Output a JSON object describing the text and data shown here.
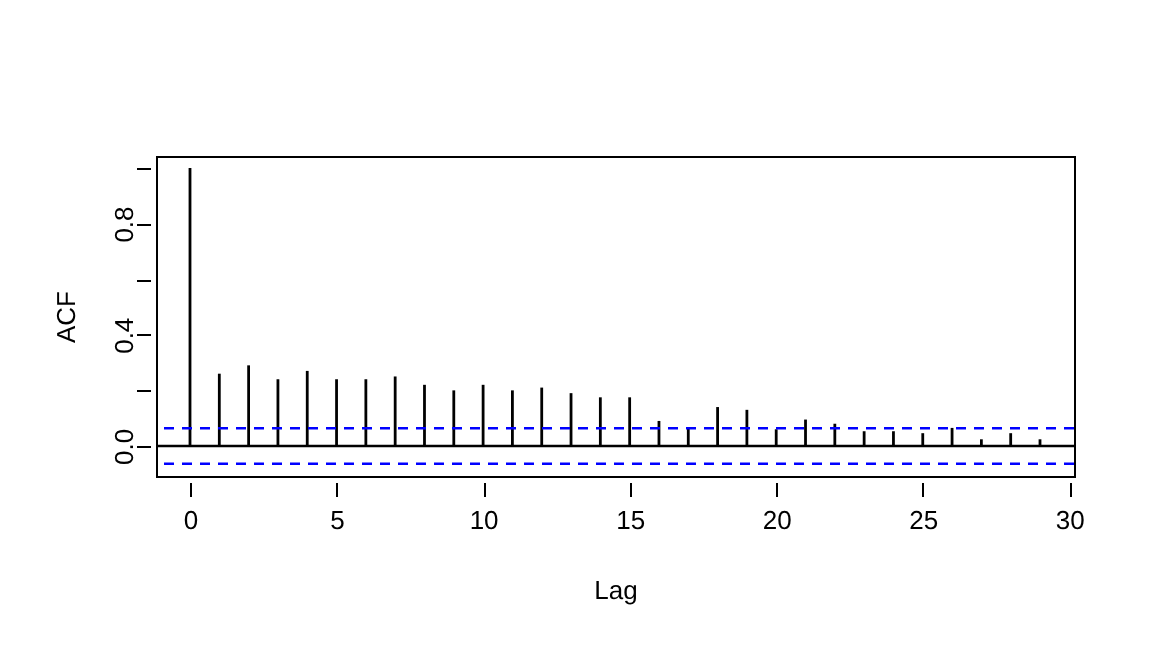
{
  "chart_data": {
    "type": "bar",
    "xlabel": "Lag",
    "ylabel": "ACF",
    "x": [
      0,
      1,
      2,
      3,
      4,
      5,
      6,
      7,
      8,
      9,
      10,
      11,
      12,
      13,
      14,
      15,
      16,
      17,
      18,
      19,
      20,
      21,
      22,
      23,
      24,
      25,
      26,
      27,
      28,
      29
    ],
    "series": [
      {
        "color": "#000000",
        "values": [
          1.0,
          0.26,
          0.29,
          0.24,
          0.27,
          0.24,
          0.24,
          0.25,
          0.22,
          0.2,
          0.22,
          0.2,
          0.21,
          0.19,
          0.175,
          0.175,
          0.09,
          0.065,
          0.14,
          0.13,
          0.06,
          0.095,
          0.08,
          0.053,
          0.053,
          0.046,
          0.065,
          0.024,
          0.046,
          0.024
        ]
      }
    ],
    "xlim": [
      -1.16,
      30.16
    ],
    "ylim": [
      -0.108,
      1.043
    ],
    "xticks": [
      0,
      5,
      10,
      15,
      20,
      25,
      30
    ],
    "yticks": [
      {
        "value": 0,
        "label": "0.0"
      },
      {
        "value": 0.2,
        "label": null
      },
      {
        "value": 0.4,
        "label": "0.4"
      },
      {
        "value": 0.6,
        "label": null
      },
      {
        "value": 0.8,
        "label": "0.8"
      },
      {
        "value": 1.0,
        "label": null
      }
    ],
    "ref_lines": [
      {
        "axis": "y",
        "value": 0,
        "color": "#000000"
      },
      {
        "axis": "y",
        "value": 0.064,
        "color": "#0000ff",
        "line_style": "dashed"
      },
      {
        "axis": "y",
        "value": -0.064,
        "color": "#0000ff",
        "line_style": "dashed"
      }
    ],
    "grid": false
  }
}
